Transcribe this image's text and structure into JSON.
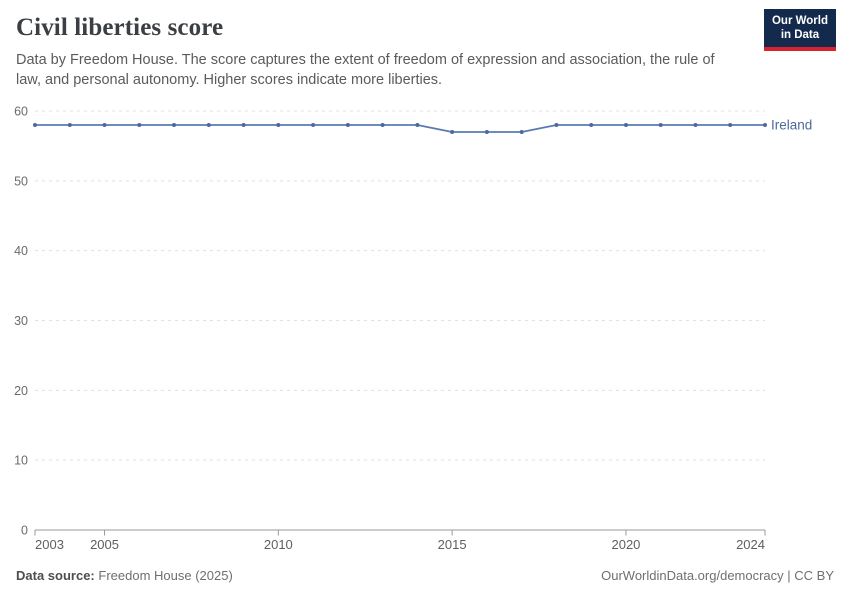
{
  "header": {
    "title": "Civil liberties score",
    "subtitle": "Data by Freedom House. The score captures the extent of freedom of expression and association, the rule of law, and personal autonomy. Higher scores indicate more liberties."
  },
  "logo": {
    "line1": "Our World",
    "line2": "in Data",
    "background": "#132a4d",
    "stripe": "#d8232e"
  },
  "chart_data": {
    "type": "line",
    "title": "Civil liberties score",
    "x": [
      2003,
      2004,
      2005,
      2006,
      2007,
      2008,
      2009,
      2010,
      2011,
      2012,
      2013,
      2014,
      2015,
      2016,
      2017,
      2018,
      2019,
      2020,
      2021,
      2022,
      2023,
      2024
    ],
    "series": [
      {
        "name": "Ireland",
        "values": [
          58,
          58,
          58,
          58,
          58,
          58,
          58,
          58,
          58,
          58,
          58,
          58,
          57,
          57,
          57,
          58,
          58,
          58,
          58,
          58,
          58,
          58
        ]
      }
    ],
    "xlim": [
      2003,
      2024
    ],
    "ylim": [
      0,
      60
    ],
    "yticks": [
      0,
      10,
      20,
      30,
      40,
      50,
      60
    ],
    "xticks": [
      2003,
      2005,
      2010,
      2015,
      2020,
      2024
    ],
    "grid": "horizontal-dashed",
    "legend": "end-of-line-label",
    "colors": {
      "line": "#5b7bb0",
      "marker": "#4c6a9c",
      "grid": "#e0e0e0",
      "axis": "#9a9a9a"
    }
  },
  "footer": {
    "source_label": "Data source:",
    "source_value": "Freedom House (2025)",
    "link": "OurWorldinData.org/democracy | CC BY"
  }
}
